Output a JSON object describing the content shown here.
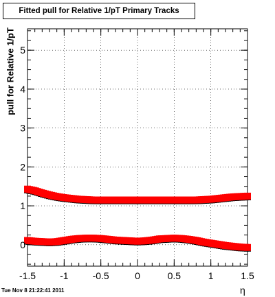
{
  "title": "Fitted pull for Relative 1/pT  Primary Tracks",
  "timestamp": "Tue Nov  8 21:22:41 2011",
  "chart_data": {
    "type": "scatter",
    "xlabel": "η",
    "ylabel": "pull for Relative 1/pT",
    "xlim": [
      -1.5,
      1.5
    ],
    "ylim": [
      -0.55,
      5.55
    ],
    "xticks": [
      "-1.5",
      "-1",
      "-0.5",
      "0",
      "0.5",
      "1",
      "1.5"
    ],
    "yticks": [
      "0",
      "1",
      "2",
      "3",
      "4",
      "5"
    ],
    "grid": true,
    "colors": {
      "marker": "#ff0000",
      "outline": "#000000"
    },
    "series": [
      {
        "x": [
          -1.5,
          -1.4,
          -1.3,
          -1.2,
          -1.1,
          -1.0,
          -0.9,
          -0.8,
          -0.7,
          -0.6,
          -0.5,
          -0.4,
          -0.3,
          -0.2,
          -0.1,
          0.0,
          0.1,
          0.2,
          0.3,
          0.4,
          0.5,
          0.6,
          0.7,
          0.8,
          0.9,
          1.0,
          1.1,
          1.2,
          1.3,
          1.4,
          1.5
        ],
        "y": [
          1.43,
          1.39,
          1.33,
          1.28,
          1.24,
          1.21,
          1.19,
          1.17,
          1.16,
          1.15,
          1.15,
          1.15,
          1.15,
          1.15,
          1.15,
          1.15,
          1.15,
          1.15,
          1.15,
          1.15,
          1.15,
          1.15,
          1.15,
          1.15,
          1.16,
          1.17,
          1.19,
          1.21,
          1.23,
          1.24,
          1.25
        ]
      },
      {
        "x": [
          -1.5,
          -1.4,
          -1.3,
          -1.2,
          -1.1,
          -1.0,
          -0.9,
          -0.8,
          -0.7,
          -0.6,
          -0.5,
          -0.4,
          -0.3,
          -0.2,
          -0.1,
          0.0,
          0.1,
          0.2,
          0.3,
          0.4,
          0.5,
          0.6,
          0.7,
          0.8,
          0.9,
          1.0,
          1.1,
          1.2,
          1.3,
          1.4,
          1.5
        ],
        "y": [
          0.11,
          0.09,
          0.08,
          0.07,
          0.08,
          0.11,
          0.14,
          0.16,
          0.17,
          0.17,
          0.16,
          0.14,
          0.12,
          0.11,
          0.1,
          0.09,
          0.1,
          0.12,
          0.15,
          0.16,
          0.17,
          0.16,
          0.14,
          0.11,
          0.07,
          0.04,
          0.01,
          -0.02,
          -0.04,
          -0.06,
          -0.07
        ]
      }
    ]
  }
}
